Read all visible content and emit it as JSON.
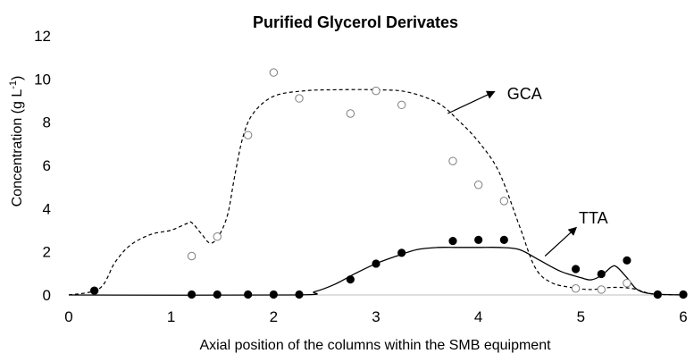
{
  "chart_data": {
    "type": "scatter",
    "title": "Purified Glycerol Derivates",
    "xlabel": "Axial position of the columns within the SMB equipment",
    "ylabel": "Concentration (g L-1)",
    "ylabel_parts": {
      "base": "Concentration (g L",
      "sup": "-1",
      "close": ")"
    },
    "xlim": [
      0,
      6
    ],
    "ylim": [
      0,
      12
    ],
    "x_ticks": [
      0,
      1,
      2,
      3,
      4,
      5,
      6
    ],
    "y_ticks": [
      0,
      2,
      4,
      6,
      8,
      10,
      12
    ],
    "grid": false,
    "legend": "none",
    "series": [
      {
        "name": "GCA",
        "marker": "open-circle",
        "points": [
          {
            "x": 0.25,
            "y": 0.2
          },
          {
            "x": 1.2,
            "y": 1.8
          },
          {
            "x": 1.45,
            "y": 2.7
          },
          {
            "x": 1.75,
            "y": 7.4
          },
          {
            "x": 2.0,
            "y": 10.3
          },
          {
            "x": 2.25,
            "y": 9.1
          },
          {
            "x": 2.75,
            "y": 8.4
          },
          {
            "x": 3.0,
            "y": 9.45
          },
          {
            "x": 3.25,
            "y": 8.8
          },
          {
            "x": 3.75,
            "y": 6.2
          },
          {
            "x": 4.0,
            "y": 5.1
          },
          {
            "x": 4.25,
            "y": 4.35
          },
          {
            "x": 4.95,
            "y": 0.3
          },
          {
            "x": 5.2,
            "y": 0.25
          },
          {
            "x": 5.45,
            "y": 0.55
          },
          {
            "x": 5.75,
            "y": 0.02
          },
          {
            "x": 6.0,
            "y": 0.02
          }
        ],
        "model_line": {
          "style": "dashed",
          "x": [
            0.0,
            0.3,
            0.45,
            0.6,
            0.8,
            1.0,
            1.15,
            1.2,
            1.3,
            1.38,
            1.46,
            1.55,
            1.62,
            1.7,
            1.8,
            2.0,
            2.3,
            2.6,
            3.0,
            3.3,
            3.6,
            3.8,
            4.0,
            4.2,
            4.4,
            4.55,
            4.7,
            4.9,
            5.1,
            5.3,
            5.5,
            5.7,
            6.0
          ],
          "y": [
            0.0,
            0.3,
            1.5,
            2.3,
            2.8,
            3.0,
            3.3,
            3.35,
            2.8,
            2.4,
            2.7,
            3.7,
            5.5,
            7.3,
            8.4,
            9.2,
            9.45,
            9.5,
            9.5,
            9.4,
            8.9,
            8.1,
            7.1,
            5.7,
            3.2,
            1.3,
            0.6,
            0.35,
            0.25,
            0.35,
            0.3,
            0.05,
            0.0
          ]
        }
      },
      {
        "name": "TTA",
        "marker": "filled-circle",
        "points": [
          {
            "x": 0.25,
            "y": 0.2
          },
          {
            "x": 1.2,
            "y": 0.02
          },
          {
            "x": 1.45,
            "y": 0.02
          },
          {
            "x": 1.75,
            "y": 0.02
          },
          {
            "x": 2.0,
            "y": 0.02
          },
          {
            "x": 2.25,
            "y": 0.02
          },
          {
            "x": 2.75,
            "y": 0.72
          },
          {
            "x": 3.0,
            "y": 1.45
          },
          {
            "x": 3.25,
            "y": 1.95
          },
          {
            "x": 3.75,
            "y": 2.5
          },
          {
            "x": 4.0,
            "y": 2.55
          },
          {
            "x": 4.25,
            "y": 2.55
          },
          {
            "x": 4.95,
            "y": 1.2
          },
          {
            "x": 5.2,
            "y": 0.97
          },
          {
            "x": 5.45,
            "y": 1.6
          },
          {
            "x": 5.75,
            "y": 0.02
          },
          {
            "x": 6.0,
            "y": 0.02
          }
        ],
        "model_line": {
          "style": "solid",
          "x": [
            0.0,
            2.2,
            2.4,
            2.6,
            2.8,
            3.0,
            3.2,
            3.4,
            3.6,
            3.8,
            4.0,
            4.2,
            4.4,
            4.6,
            4.8,
            5.0,
            5.1,
            5.2,
            5.3,
            5.35,
            5.45,
            5.55,
            5.7,
            6.0
          ],
          "y": [
            0.0,
            0.0,
            0.15,
            0.5,
            1.0,
            1.45,
            1.8,
            2.1,
            2.2,
            2.2,
            2.2,
            2.2,
            2.1,
            1.6,
            1.1,
            0.8,
            0.7,
            0.9,
            1.3,
            1.3,
            0.8,
            0.25,
            0.05,
            0.0
          ]
        }
      }
    ],
    "annotations": [
      {
        "text": "GCA",
        "arrow_from": {
          "x": 3.7,
          "y": 8.4
        },
        "arrow_to": {
          "x": 4.15,
          "y": 9.4
        },
        "text_at": {
          "x": 4.28,
          "y": 9.35
        }
      },
      {
        "text": "TTA",
        "arrow_from": {
          "x": 4.65,
          "y": 1.8
        },
        "arrow_to": {
          "x": 4.95,
          "y": 3.1
        },
        "text_at": {
          "x": 4.98,
          "y": 3.6
        }
      }
    ]
  }
}
